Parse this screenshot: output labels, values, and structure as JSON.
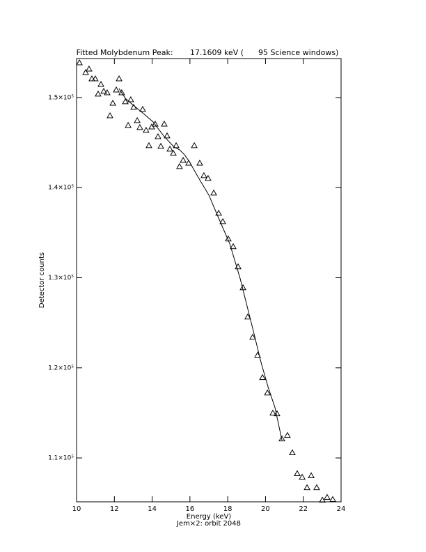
{
  "chart_data": {
    "type": "scatter",
    "title": "Fitted Molybdenum Peak:       17.1609 keV (      95 Science windows)",
    "x_label": "Energy (keV)",
    "subtitle": "Jem×2: orbit 2048",
    "y_label": "Detector counts",
    "xlim": [
      10,
      24
    ],
    "xticks": [
      10,
      12,
      14,
      16,
      18,
      20,
      22,
      24
    ],
    "ylim": [
      105130,
      154330
    ],
    "yticks": [
      {
        "value": 110000,
        "label": "1.1×10⁵"
      },
      {
        "value": 120000,
        "label": "1.2×10⁵"
      },
      {
        "value": 130000,
        "label": "1.3×10⁵"
      },
      {
        "value": 140000,
        "label": "1.4×10⁵"
      },
      {
        "value": 150000,
        "label": "1.5×10⁵"
      }
    ],
    "color": "#000000",
    "series": [
      {
        "kind": "points",
        "x": [
          10.15,
          10.48,
          10.66,
          10.81,
          10.99,
          11.14,
          11.29,
          11.44,
          11.62,
          11.77,
          11.92,
          12.1,
          12.25,
          12.39,
          12.58,
          12.73,
          12.87,
          13.02,
          13.21,
          13.35,
          13.5,
          13.68,
          13.83,
          13.98,
          14.16,
          14.31,
          14.46,
          14.64,
          14.79,
          14.94,
          15.12,
          15.27,
          15.45,
          15.64,
          15.93,
          16.23,
          16.52,
          16.74,
          16.96,
          17.26,
          17.52,
          17.74,
          18.03,
          18.29,
          18.55,
          18.81,
          19.06,
          19.32,
          19.58,
          19.84,
          20.1,
          20.39,
          20.61,
          20.87,
          21.16,
          21.42,
          21.68,
          21.94,
          22.2,
          22.42,
          22.71,
          23.01,
          23.26,
          23.56
        ],
        "values": [
          153870,
          152780,
          153170,
          152090,
          152090,
          150390,
          151470,
          150700,
          150540,
          147990,
          149380,
          150850,
          152090,
          150540,
          149540,
          146910,
          149770,
          148920,
          147450,
          146680,
          148690,
          146370,
          144670,
          146750,
          147060,
          145670,
          144590,
          147060,
          145750,
          144280,
          143820,
          144670,
          142350,
          143040,
          142730,
          144670,
          142730,
          141340,
          141030,
          139410,
          137170,
          136240,
          134310,
          133460,
          131220,
          128900,
          125650,
          123410,
          121400,
          118930,
          117220,
          114980,
          114910,
          112120,
          112510,
          110580,
          108260,
          107870,
          106710,
          108030,
          106710,
          105320,
          105630,
          105400
        ]
      },
      {
        "kind": "fit",
        "x": [
          12.25,
          12.58,
          12.95,
          13.5,
          14.05,
          14.61,
          15.16,
          15.45,
          15.71,
          15.97,
          16.45,
          17.0,
          17.55,
          18.11,
          18.66,
          19.03,
          19.4,
          19.76,
          20.13,
          20.5,
          20.87
        ],
        "values": [
          151000,
          149920,
          149230,
          148300,
          147300,
          145750,
          144510,
          144200,
          143660,
          142890,
          141110,
          139180,
          136470,
          133770,
          129900,
          126810,
          123720,
          120630,
          117920,
          115600,
          111970
        ]
      }
    ]
  }
}
